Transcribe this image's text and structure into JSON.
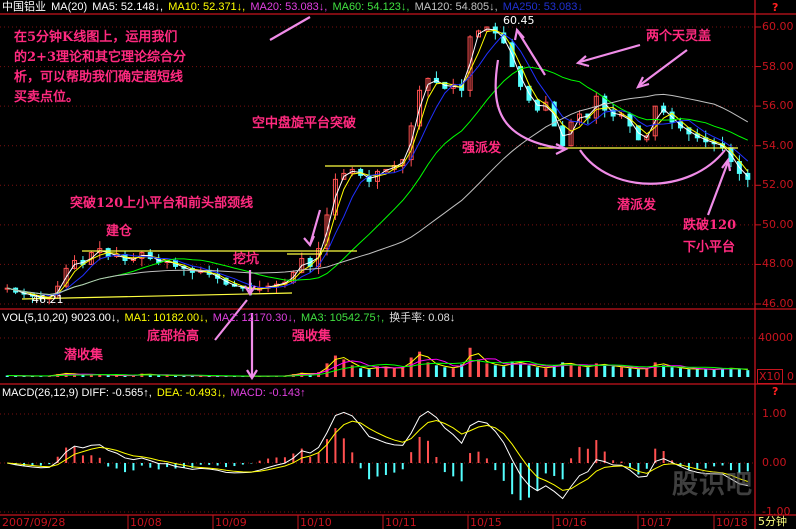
{
  "header": {
    "stock": "中国铝业",
    "ind": "MA(20)",
    "ma5": "MA5: 52.148↓,",
    "ma10": "MA10: 52.371↓,",
    "ma20": "MA20: 53.083↓,",
    "ma60": "MA60: 54.123↓,",
    "ma120": "MA120: 54.805↓,",
    "ma250": "MA250: 53.083↓"
  },
  "vol_header": {
    "vol": "VOL(5,10,20)  9023.00↓,",
    "ma1": "MA1: 10182.00↓,",
    "ma2": "MA2: 12170.30↓,",
    "ma3": "MA3: 10542.75↑,",
    "turnover": "换手率: 0.08↓"
  },
  "macd_header": {
    "macd": "MACD(26,12,9)  DIFF: -0.565↑,",
    "dea": "DEA: -0.493↓,",
    "val": "MACD: -0.143↑"
  },
  "intro_lines": [
    "在5分钟K线图上，运用我们",
    "的2+3理论和其它理论综合分",
    "析，可以帮助我们确定超短线",
    "买卖点位。"
  ],
  "annotations": {
    "build": "建仓",
    "pit": "挖坑",
    "bottom_up": "底部抬高",
    "latent_collect": "潜收集",
    "strong_collect": "强收集",
    "breakout": "突破120上小平台和前头部颈线",
    "air_platform": "空中盘旋平台突破",
    "strong_dist": "强派发",
    "two_tops": "两个天灵盖",
    "latent_dist": "潜派发",
    "break_below1": "跌破120",
    "break_below2": "下小平台"
  },
  "labels": {
    "high": "60.45",
    "low": "46.21",
    "period": "5分钟",
    "vol_unit": "X10",
    "help": "?",
    "watermark": "股识吧"
  },
  "colors": {
    "ma5": "#ffffff",
    "ma10": "#ffff00",
    "ma20": "#ff00ff",
    "ma60": "#00ff00",
    "ma120": "#c0c0c0",
    "ma250": "#0000ff",
    "up": "#ff5050",
    "down": "#54ffff",
    "axis": "#c8141e",
    "annotation": "#ff2a7f",
    "arrow": "#f08ce8"
  },
  "chart_data": {
    "type": "candlestick",
    "price_axis": {
      "ticks": [
        "60.00",
        "58.00",
        "56.00",
        "54.00",
        "52.00",
        "50.00",
        "48.00",
        "46.00"
      ],
      "range": [
        46,
        60.5
      ]
    },
    "vol_axis": {
      "ticks": [
        "40000",
        "0"
      ],
      "range": [
        0,
        52000
      ]
    },
    "macd_axis": {
      "ticks": [
        "1.00",
        "0.00",
        "-1.00"
      ],
      "range": [
        -1.1,
        1.6
      ]
    },
    "date_labels": [
      "2007/09/28",
      "10/08",
      "10/09",
      "10/10",
      "10/11",
      "10/15",
      "10/16",
      "10/17",
      "10/18"
    ],
    "close": [
      46.8,
      46.6,
      46.5,
      46.4,
      46.3,
      46.3,
      46.9,
      47.8,
      48.2,
      48.0,
      48.6,
      48.8,
      48.4,
      48.5,
      48.2,
      48.3,
      48.6,
      48.3,
      48.1,
      48.2,
      47.9,
      47.8,
      47.6,
      47.7,
      47.5,
      47.3,
      47.0,
      46.9,
      46.8,
      46.7,
      46.8,
      46.9,
      47.0,
      47.1,
      47.6,
      48.3,
      47.9,
      48.8,
      50.5,
      52.3,
      52.6,
      52.8,
      52.5,
      52.2,
      52.7,
      52.8,
      53.0,
      53.3,
      55.0,
      56.8,
      57.4,
      57.2,
      56.9,
      57.1,
      56.8,
      59.5,
      59.8,
      60.0,
      59.7,
      59.2,
      58.0,
      57.0,
      56.3,
      55.8,
      56.2,
      55.0,
      54.0,
      55.2,
      55.6,
      55.4,
      56.5,
      55.8,
      55.5,
      55.6,
      55.0,
      54.3,
      54.5,
      56.0,
      55.7,
      55.2,
      54.9,
      54.6,
      54.4,
      54.2,
      54.1,
      53.9,
      53.2,
      52.6,
      52.3
    ],
    "volume": [
      1500,
      1200,
      1000,
      900,
      1100,
      1300,
      3000,
      4200,
      2500,
      2000,
      2800,
      2200,
      1800,
      1500,
      1400,
      1700,
      3500,
      2200,
      1900,
      1600,
      1500,
      1400,
      1300,
      1200,
      1100,
      1000,
      900,
      1000,
      800,
      700,
      900,
      1000,
      1100,
      1200,
      3000,
      4500,
      2500,
      5000,
      14000,
      22000,
      18000,
      12000,
      9000,
      8000,
      11000,
      9500,
      9000,
      10000,
      20000,
      26000,
      15000,
      12000,
      10000,
      9000,
      13000,
      30000,
      18000,
      14000,
      12000,
      11000,
      16000,
      14000,
      12000,
      10000,
      9000,
      12000,
      15000,
      13000,
      11000,
      10000,
      14000,
      12000,
      11000,
      10000,
      9000,
      8000,
      9000,
      15000,
      12000,
      10000,
      9000,
      8000,
      8500,
      8000,
      7500,
      9000,
      9023,
      8000,
      7000
    ]
  }
}
